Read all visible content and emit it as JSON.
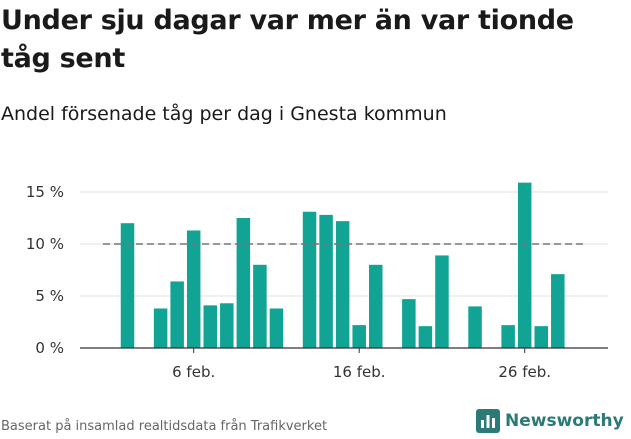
{
  "title": "Under sju dagar var mer än var tionde tåg sent",
  "subtitle": "Andel försenade tåg per dag i Gnesta kommun",
  "footer": "Baserat på insamlad realtidsdata från Trafikverket",
  "brand": "Newsworthy",
  "colors": {
    "bar": "#11a393",
    "reference_line": "#777777",
    "grid": "#e2e2e2",
    "brand": "#2b7a78"
  },
  "chart_data": {
    "type": "bar",
    "x_start": "2 feb.",
    "x_end": "28 feb.",
    "xticks": [
      {
        "day": 6,
        "label": "6 feb."
      },
      {
        "day": 16,
        "label": "16 feb."
      },
      {
        "day": 26,
        "label": "26 feb."
      }
    ],
    "series": [
      {
        "values": [
          {
            "day": 2,
            "value": 12.0
          },
          {
            "day": 4,
            "value": 3.8
          },
          {
            "day": 5,
            "value": 6.4
          },
          {
            "day": 6,
            "value": 11.3
          },
          {
            "day": 7,
            "value": 4.1
          },
          {
            "day": 8,
            "value": 4.3
          },
          {
            "day": 9,
            "value": 12.5
          },
          {
            "day": 10,
            "value": 8.0
          },
          {
            "day": 11,
            "value": 3.8
          },
          {
            "day": 13,
            "value": 13.1
          },
          {
            "day": 14,
            "value": 12.8
          },
          {
            "day": 15,
            "value": 12.2
          },
          {
            "day": 16,
            "value": 2.2
          },
          {
            "day": 17,
            "value": 8.0
          },
          {
            "day": 19,
            "value": 4.7
          },
          {
            "day": 20,
            "value": 2.1
          },
          {
            "day": 21,
            "value": 8.9
          },
          {
            "day": 23,
            "value": 4.0
          },
          {
            "day": 25,
            "value": 2.2
          },
          {
            "day": 26,
            "value": 15.9
          },
          {
            "day": 27,
            "value": 2.1
          },
          {
            "day": 28,
            "value": 7.1
          }
        ]
      }
    ],
    "reference_line": 10,
    "yticks": [
      {
        "value": 0,
        "label": "0 %"
      },
      {
        "value": 5,
        "label": "5 %"
      },
      {
        "value": 10,
        "label": "10 %"
      },
      {
        "value": 15,
        "label": "15 %"
      }
    ],
    "ylim": [
      0,
      15.9
    ],
    "grid": true
  }
}
